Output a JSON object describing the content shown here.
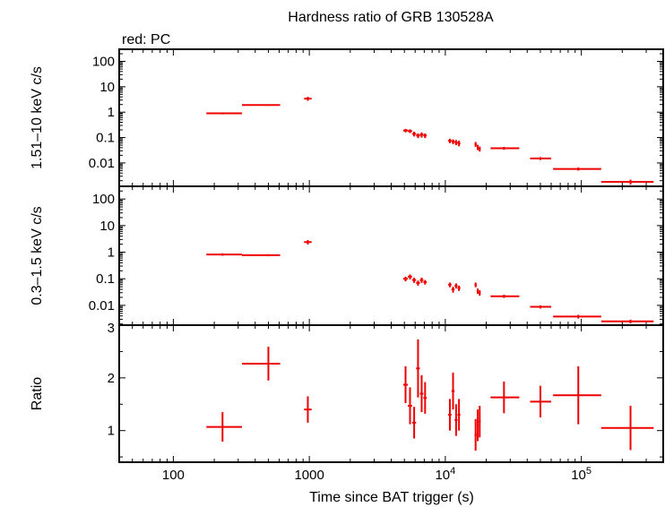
{
  "chart_data": {
    "type": "scatter",
    "title": "Hardness ratio of GRB 130528A",
    "legend_text": "red: PC",
    "xlabel": "Time since BAT trigger (s)",
    "x_scale": "log",
    "xlim": [
      40,
      400000
    ],
    "x_ticks": [
      {
        "value": 100,
        "label": "100",
        "sup": ""
      },
      {
        "value": 1000,
        "label": "1000",
        "sup": ""
      },
      {
        "value": 10000,
        "label": "10",
        "sup": "4"
      },
      {
        "value": 100000,
        "label": "10",
        "sup": "5"
      }
    ],
    "color": "#ee0000",
    "panels": [
      {
        "id": "hard",
        "ylabel": "1.51–10 keV c/s",
        "y_scale": "log",
        "ylim": [
          0.0012,
          300
        ],
        "y_ticks": [
          {
            "value": 100,
            "label": "100"
          },
          {
            "value": 10,
            "label": "10"
          },
          {
            "value": 1,
            "label": "1"
          },
          {
            "value": 0.1,
            "label": "0.1"
          },
          {
            "value": 0.01,
            "label": "0.01"
          }
        ],
        "points": [
          {
            "x": 230,
            "x0": 175,
            "x1": 320,
            "y": 0.9,
            "yerr": 0.08
          },
          {
            "x": 500,
            "x0": 320,
            "x1": 610,
            "y": 1.9,
            "yerr": 0.12
          },
          {
            "x": 975,
            "x0": 915,
            "x1": 1040,
            "y": 3.4,
            "yerr": 0.6
          },
          {
            "x": 5100,
            "x0": 4900,
            "x1": 5300,
            "y": 0.19,
            "yerr": 0.03
          },
          {
            "x": 5500,
            "x0": 5300,
            "x1": 5700,
            "y": 0.18,
            "yerr": 0.03
          },
          {
            "x": 5900,
            "x0": 5700,
            "x1": 6100,
            "y": 0.14,
            "yerr": 0.03
          },
          {
            "x": 6300,
            "x0": 6100,
            "x1": 6500,
            "y": 0.12,
            "yerr": 0.025
          },
          {
            "x": 6700,
            "x0": 6500,
            "x1": 6900,
            "y": 0.13,
            "yerr": 0.03
          },
          {
            "x": 7100,
            "x0": 6900,
            "x1": 7300,
            "y": 0.12,
            "yerr": 0.025
          },
          {
            "x": 10800,
            "x0": 10500,
            "x1": 11100,
            "y": 0.075,
            "yerr": 0.015
          },
          {
            "x": 11400,
            "x0": 11100,
            "x1": 11700,
            "y": 0.07,
            "yerr": 0.015
          },
          {
            "x": 12000,
            "x0": 11700,
            "x1": 12300,
            "y": 0.065,
            "yerr": 0.015
          },
          {
            "x": 12600,
            "x0": 12300,
            "x1": 12900,
            "y": 0.06,
            "yerr": 0.015
          },
          {
            "x": 16700,
            "x0": 16400,
            "x1": 17000,
            "y": 0.055,
            "yerr": 0.012
          },
          {
            "x": 17300,
            "x0": 17000,
            "x1": 17600,
            "y": 0.042,
            "yerr": 0.01
          },
          {
            "x": 17900,
            "x0": 17600,
            "x1": 18200,
            "y": 0.036,
            "yerr": 0.008
          },
          {
            "x": 27000,
            "x0": 21500,
            "x1": 35000,
            "y": 0.038,
            "yerr": 0.005
          },
          {
            "x": 50000,
            "x0": 42000,
            "x1": 60000,
            "y": 0.015,
            "yerr": 0.002
          },
          {
            "x": 95000,
            "x0": 62000,
            "x1": 140000,
            "y": 0.0058,
            "yerr": 0.0008
          },
          {
            "x": 230000,
            "x0": 140000,
            "x1": 340000,
            "y": 0.0018,
            "yerr": 0.0004
          }
        ]
      },
      {
        "id": "soft",
        "ylabel": "0.3–1.5 keV c/s",
        "y_scale": "log",
        "ylim": [
          0.0018,
          300
        ],
        "y_ticks": [
          {
            "value": 100,
            "label": "100"
          },
          {
            "value": 10,
            "label": "10"
          },
          {
            "value": 1,
            "label": "1"
          },
          {
            "value": 0.1,
            "label": "0.1"
          },
          {
            "value": 0.01,
            "label": "0.01"
          }
        ],
        "points": [
          {
            "x": 230,
            "x0": 175,
            "x1": 320,
            "y": 0.82,
            "yerr": 0.09
          },
          {
            "x": 500,
            "x0": 320,
            "x1": 610,
            "y": 0.77,
            "yerr": 0.07
          },
          {
            "x": 975,
            "x0": 915,
            "x1": 1040,
            "y": 2.4,
            "yerr": 0.45
          },
          {
            "x": 5100,
            "x0": 4900,
            "x1": 5300,
            "y": 0.1,
            "yerr": 0.02
          },
          {
            "x": 5500,
            "x0": 5300,
            "x1": 5700,
            "y": 0.12,
            "yerr": 0.025
          },
          {
            "x": 5900,
            "x0": 5700,
            "x1": 6100,
            "y": 0.09,
            "yerr": 0.02
          },
          {
            "x": 6300,
            "x0": 6100,
            "x1": 6500,
            "y": 0.07,
            "yerr": 0.015
          },
          {
            "x": 6700,
            "x0": 6500,
            "x1": 6900,
            "y": 0.09,
            "yerr": 0.02
          },
          {
            "x": 7100,
            "x0": 6900,
            "x1": 7300,
            "y": 0.075,
            "yerr": 0.015
          },
          {
            "x": 10800,
            "x0": 10500,
            "x1": 11100,
            "y": 0.06,
            "yerr": 0.012
          },
          {
            "x": 11400,
            "x0": 11100,
            "x1": 11700,
            "y": 0.04,
            "yerr": 0.01
          },
          {
            "x": 12000,
            "x0": 11700,
            "x1": 12300,
            "y": 0.055,
            "yerr": 0.012
          },
          {
            "x": 12600,
            "x0": 12300,
            "x1": 12900,
            "y": 0.045,
            "yerr": 0.01
          },
          {
            "x": 16700,
            "x0": 16400,
            "x1": 17000,
            "y": 0.06,
            "yerr": 0.012
          },
          {
            "x": 17300,
            "x0": 17000,
            "x1": 17600,
            "y": 0.035,
            "yerr": 0.008
          },
          {
            "x": 17900,
            "x0": 17600,
            "x1": 18200,
            "y": 0.03,
            "yerr": 0.007
          },
          {
            "x": 27000,
            "x0": 21500,
            "x1": 35000,
            "y": 0.022,
            "yerr": 0.003
          },
          {
            "x": 50000,
            "x0": 42000,
            "x1": 60000,
            "y": 0.0088,
            "yerr": 0.0012
          },
          {
            "x": 95000,
            "x0": 62000,
            "x1": 140000,
            "y": 0.0038,
            "yerr": 0.0006
          },
          {
            "x": 230000,
            "x0": 140000,
            "x1": 340000,
            "y": 0.0025,
            "yerr": 0.0004
          }
        ]
      },
      {
        "id": "ratio",
        "ylabel": "Ratio",
        "y_scale": "linear",
        "ylim": [
          0.4,
          3.0
        ],
        "y_ticks": [
          {
            "value": 3,
            "label": "3"
          },
          {
            "value": 2,
            "label": "2"
          },
          {
            "value": 1,
            "label": "1"
          }
        ],
        "points": [
          {
            "x": 230,
            "x0": 175,
            "x1": 320,
            "y": 1.07,
            "yerr": 0.28
          },
          {
            "x": 500,
            "x0": 320,
            "x1": 610,
            "y": 2.27,
            "yerr": 0.32
          },
          {
            "x": 975,
            "x0": 915,
            "x1": 1040,
            "y": 1.4,
            "yerr": 0.25
          },
          {
            "x": 5100,
            "x0": 4900,
            "x1": 5300,
            "y": 1.87,
            "yerr": 0.35
          },
          {
            "x": 5500,
            "x0": 5300,
            "x1": 5700,
            "y": 1.47,
            "yerr": 0.35
          },
          {
            "x": 5900,
            "x0": 5700,
            "x1": 6100,
            "y": 1.15,
            "yerr": 0.3
          },
          {
            "x": 6300,
            "x0": 6100,
            "x1": 6500,
            "y": 2.18,
            "yerr": 0.55
          },
          {
            "x": 6700,
            "x0": 6500,
            "x1": 6900,
            "y": 1.7,
            "yerr": 0.35
          },
          {
            "x": 7100,
            "x0": 6900,
            "x1": 7300,
            "y": 1.62,
            "yerr": 0.3
          },
          {
            "x": 10800,
            "x0": 10500,
            "x1": 11100,
            "y": 1.3,
            "yerr": 0.3
          },
          {
            "x": 11400,
            "x0": 11100,
            "x1": 11700,
            "y": 1.75,
            "yerr": 0.35
          },
          {
            "x": 12000,
            "x0": 11700,
            "x1": 12300,
            "y": 1.2,
            "yerr": 0.3
          },
          {
            "x": 12600,
            "x0": 12300,
            "x1": 12900,
            "y": 1.3,
            "yerr": 0.3
          },
          {
            "x": 16700,
            "x0": 16400,
            "x1": 17000,
            "y": 0.92,
            "yerr": 0.3
          },
          {
            "x": 17300,
            "x0": 17000,
            "x1": 17600,
            "y": 1.1,
            "yerr": 0.3
          },
          {
            "x": 17900,
            "x0": 17600,
            "x1": 18200,
            "y": 1.17,
            "yerr": 0.3
          },
          {
            "x": 27000,
            "x0": 21500,
            "x1": 35000,
            "y": 1.63,
            "yerr": 0.3
          },
          {
            "x": 50000,
            "x0": 42000,
            "x1": 60000,
            "y": 1.55,
            "yerr": 0.3
          },
          {
            "x": 95000,
            "x0": 62000,
            "x1": 140000,
            "y": 1.67,
            "yerr": 0.55
          },
          {
            "x": 230000,
            "x0": 140000,
            "x1": 340000,
            "y": 1.05,
            "yerr": 0.42
          }
        ]
      }
    ]
  }
}
